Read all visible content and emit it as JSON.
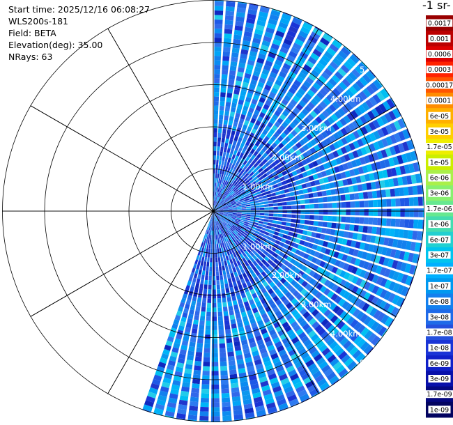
{
  "info": {
    "start_time": "Start time: 2025/12/16 06:08:27",
    "instrument": "WLS200s-181",
    "field": "Field: BETA",
    "elevation": "Elevation(deg): 35.00",
    "nrays": "NRays: 63"
  },
  "colorbar": {
    "unit_label": "-1 sr-",
    "labels": [
      "0.0017",
      "0.001",
      "0.0006",
      "0.0003",
      "0.00017",
      "0.0001",
      "6e-05",
      "3e-05",
      "1.7e-05",
      "1e-05",
      "6e-06",
      "3e-06",
      "1.7e-06",
      "1e-06",
      "6e-07",
      "3e-07",
      "1.7e-07",
      "1e-07",
      "6e-08",
      "3e-08",
      "1.7e-08",
      "1e-08",
      "6e-09",
      "3e-09",
      "1.7e-09",
      "1e-09"
    ],
    "colors": [
      "#990000",
      "#bb0000",
      "#dd0000",
      "#ff2200",
      "#ff5500",
      "#ff8c00",
      "#ffb000",
      "#ffcf00",
      "#eeee00",
      "#ccee00",
      "#aaf04a",
      "#88f070",
      "#66e890",
      "#44dcb0",
      "#22d0d0",
      "#00c4ee",
      "#00b0ff",
      "#0099f0",
      "#1380ee",
      "#1f6ae8",
      "#2550dd",
      "#1a34d6",
      "#1020c8",
      "#0810aa",
      "#050880",
      "#030460"
    ]
  },
  "range_labels": {
    "upper": [
      "1.00km",
      "2.00km",
      "3.00km",
      "4.00km",
      "5."
    ],
    "lower": [
      "1.00km",
      "2.00km",
      "3.00km",
      "4.00km",
      "5."
    ]
  },
  "chart_data": {
    "type": "heatmap",
    "projection": "polar (PPI scan)",
    "field": "BETA",
    "elevation_deg": 35.0,
    "n_rays": 63,
    "sector_deg": [
      0,
      200
    ],
    "range_rings_km": [
      1,
      2,
      3,
      4,
      5
    ]
  }
}
